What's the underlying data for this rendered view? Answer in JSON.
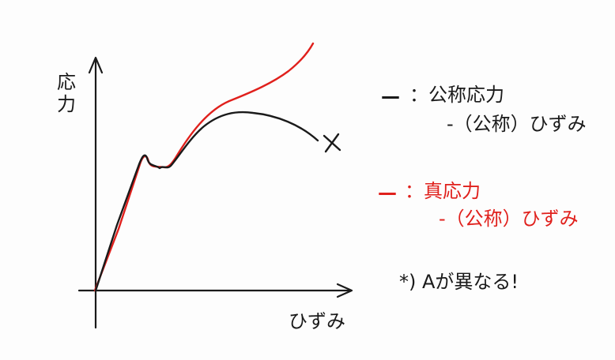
{
  "axes": {
    "y_label": "応力",
    "x_label": "ひずみ"
  },
  "legend": [
    {
      "marker": "—",
      "line1": "：公称応力",
      "line2": "-（公称）ひずみ",
      "color": "#1a1a1a"
    },
    {
      "marker": "—",
      "line1": "：真応力",
      "line2": "-（公称）ひずみ",
      "color": "#e0201c"
    }
  ],
  "note": "*) Aが異なる!",
  "colors": {
    "nominal": "#1a1a1a",
    "true": "#e0201c"
  },
  "fracture_marker_icon": "x-mark"
}
